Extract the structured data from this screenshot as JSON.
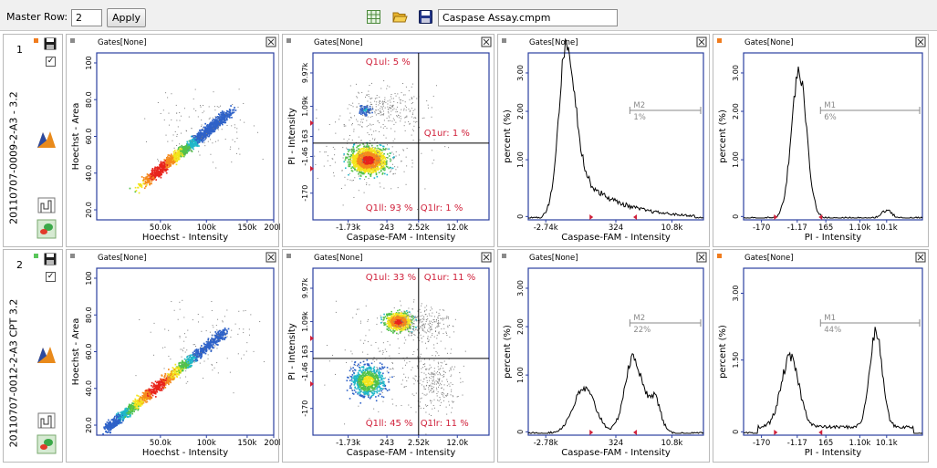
{
  "toolbar": {
    "master_row_label": "Master Row:",
    "master_row_value": "2",
    "apply_label": "Apply",
    "file_name": "Caspase Assay.cmpm",
    "icons": [
      "spreadsheet-icon",
      "folder-open-icon",
      "floppy-save-icon"
    ]
  },
  "colors": {
    "axis": "#2b3fa0",
    "gate_text": "#d0203a",
    "marker": "#8a8a8a",
    "dot_green": "#59c65a",
    "dot_orange": "#f07c1e",
    "dot_gray": "#8a8a8a"
  },
  "gates_label": "Gates[None]",
  "rows": [
    {
      "num": "1",
      "sample": "20110707-0009-2-A3 - 3.2",
      "plots": [
        {
          "type": "scatter-density",
          "xlabel": "Hoechst - Intensity",
          "ylabel": "Hoechst - Area",
          "xticks": [
            "50.0k",
            "100k",
            "150k",
            "200k"
          ],
          "yticks": [
            "100",
            "80.0",
            "60.0",
            "40.0",
            "20.0"
          ]
        },
        {
          "type": "quadrant",
          "xlabel": "Caspase-FAM - Intensity",
          "ylabel": "PI - Intensity",
          "xticks": [
            "-1.73k",
            "243",
            "2.52k",
            "12.0k"
          ],
          "yticks": [
            "9.97k",
            "1.09k",
            "163",
            "-1.46",
            "-170"
          ],
          "quadrants": {
            "ul": "Q1ul: 5 %",
            "ur": "Q1ur: 1 %",
            "ll": "Q1ll: 93 %",
            "lr": "Q1lr: 1 %"
          }
        },
        {
          "type": "histogram",
          "xlabel": "Caspase-FAM - Intensity",
          "ylabel": "percent (%)",
          "xticks": [
            "-2.74k",
            "324",
            "10.8k"
          ],
          "yticks": [
            "3.00",
            "2.00",
            "1.00",
            "0"
          ],
          "marker": {
            "name": "M2",
            "value": "1%"
          }
        },
        {
          "type": "histogram",
          "xlabel": "PI - Intensity",
          "ylabel": "percent (%)",
          "xticks": [
            "-170",
            "-1.17",
            "165",
            "1.10k",
            "10.1k"
          ],
          "yticks": [
            "3.00",
            "2.00",
            "1.00",
            "0"
          ],
          "marker": {
            "name": "M1",
            "value": "6%"
          }
        }
      ]
    },
    {
      "num": "2",
      "sample": "20110707-0012-2-A3 CPT 3.2",
      "plots": [
        {
          "type": "scatter-density",
          "xlabel": "Hoechst - Intensity",
          "ylabel": "Hoechst - Area",
          "xticks": [
            "50.0k",
            "100k",
            "150k",
            "200k"
          ],
          "yticks": [
            "100",
            "80.0",
            "60.0",
            "40.0",
            "20.0"
          ]
        },
        {
          "type": "quadrant",
          "xlabel": "Caspase-FAM - Intensity",
          "ylabel": "PI - Intensity",
          "xticks": [
            "-1.73k",
            "243",
            "2.52k",
            "12.0k"
          ],
          "yticks": [
            "9.97k",
            "1.09k",
            "163",
            "-1.46",
            "-170"
          ],
          "quadrants": {
            "ul": "Q1ul: 33 %",
            "ur": "Q1ur: 11 %",
            "ll": "Q1ll: 45 %",
            "lr": "Q1lr: 11 %"
          }
        },
        {
          "type": "histogram",
          "xlabel": "Caspase-FAM - Intensity",
          "ylabel": "percent (%)",
          "xticks": [
            "-2.78k",
            "324",
            "10.8k"
          ],
          "yticks": [
            "3.00",
            "2.00",
            "1.00",
            "0"
          ],
          "marker": {
            "name": "M2",
            "value": "22%"
          }
        },
        {
          "type": "histogram",
          "xlabel": "PI - Intensity",
          "ylabel": "percent (%)",
          "xticks": [
            "-170",
            "-1.17",
            "165",
            "1.10k",
            "10.1k"
          ],
          "yticks": [
            "3.00",
            "1.50",
            "0"
          ],
          "marker": {
            "name": "M1",
            "value": "44%"
          }
        }
      ]
    }
  ]
}
